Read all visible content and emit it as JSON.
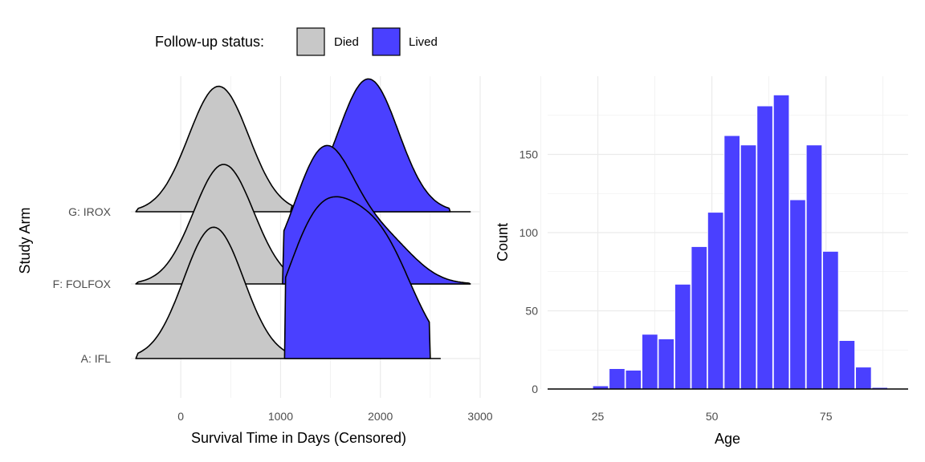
{
  "colors": {
    "died": "#c8c8c8",
    "lived": "#4a40ff",
    "grid": "#ebebeb",
    "outline": "#000000"
  },
  "chart_data": [
    {
      "type": "ridgeline",
      "xlabel": "Survival Time in Days (Censored)",
      "ylabel": "Study Arm",
      "xlim": [
        -500,
        3000
      ],
      "x_ticks": [
        0,
        1000,
        2000,
        3000
      ],
      "x_tick_labels": [
        "0",
        "1000",
        "2000",
        "3000"
      ],
      "categories": [
        "A: IFL",
        "F: FOLFOX",
        "G: IROX"
      ],
      "legend": {
        "title": "Follow-up status:",
        "position": "top",
        "entries": [
          "Died",
          "Lived"
        ]
      },
      "grid": true,
      "series": [
        {
          "name": "Died",
          "arms": [
            {
              "arm": "A: IFL",
              "x_range": [
                -450,
                2600
              ],
              "peaks": [
                {
                  "x": 330,
                  "height": 1.78
                }
              ]
            },
            {
              "arm": "F: FOLFOX",
              "x_range": [
                -450,
                2900
              ],
              "peaks": [
                {
                  "x": 430,
                  "height": 1.62
                }
              ]
            },
            {
              "arm": "G: IROX",
              "x_range": [
                -450,
                2900
              ],
              "peaks": [
                {
                  "x": 380,
                  "height": 1.7
                }
              ]
            }
          ]
        },
        {
          "name": "Lived",
          "arms": [
            {
              "arm": "A: IFL",
              "x_range": [
                1040,
                2500
              ],
              "peaks": [
                {
                  "x": 1310,
                  "height": 1.45
                },
                {
                  "x": 1700,
                  "height": 1.04
                },
                {
                  "x": 2090,
                  "height": 1.12
                }
              ]
            },
            {
              "arm": "F: FOLFOX",
              "x_range": [
                1020,
                2900
              ],
              "peaks": [
                {
                  "x": 1440,
                  "height": 1.8
                },
                {
                  "x": 2050,
                  "height": 0.55
                }
              ]
            },
            {
              "arm": "G: IROX",
              "x_range": [
                1100,
                2700
              ],
              "peaks": [
                {
                  "x": 1880,
                  "height": 1.8
                }
              ]
            }
          ]
        }
      ]
    },
    {
      "type": "bar",
      "subtype": "histogram",
      "xlabel": "Age",
      "ylabel": "Count",
      "xlim": [
        14,
        93
      ],
      "ylim": [
        0,
        200
      ],
      "x_ticks": [
        25,
        50,
        75
      ],
      "y_ticks": [
        0,
        50,
        100,
        150
      ],
      "bin_width": 3.6,
      "bins": [
        {
          "x": 18.4,
          "count": 0
        },
        {
          "x": 22.0,
          "count": 0
        },
        {
          "x": 25.6,
          "count": 2
        },
        {
          "x": 29.2,
          "count": 13
        },
        {
          "x": 32.8,
          "count": 12
        },
        {
          "x": 36.4,
          "count": 35
        },
        {
          "x": 40.0,
          "count": 32
        },
        {
          "x": 43.6,
          "count": 67
        },
        {
          "x": 47.2,
          "count": 91
        },
        {
          "x": 50.8,
          "count": 113
        },
        {
          "x": 54.4,
          "count": 162
        },
        {
          "x": 58.0,
          "count": 156
        },
        {
          "x": 61.6,
          "count": 181
        },
        {
          "x": 65.2,
          "count": 188
        },
        {
          "x": 68.8,
          "count": 121
        },
        {
          "x": 72.4,
          "count": 156
        },
        {
          "x": 76.0,
          "count": 88
        },
        {
          "x": 79.6,
          "count": 31
        },
        {
          "x": 83.2,
          "count": 14
        },
        {
          "x": 86.8,
          "count": 1
        }
      ],
      "grid": true
    }
  ]
}
